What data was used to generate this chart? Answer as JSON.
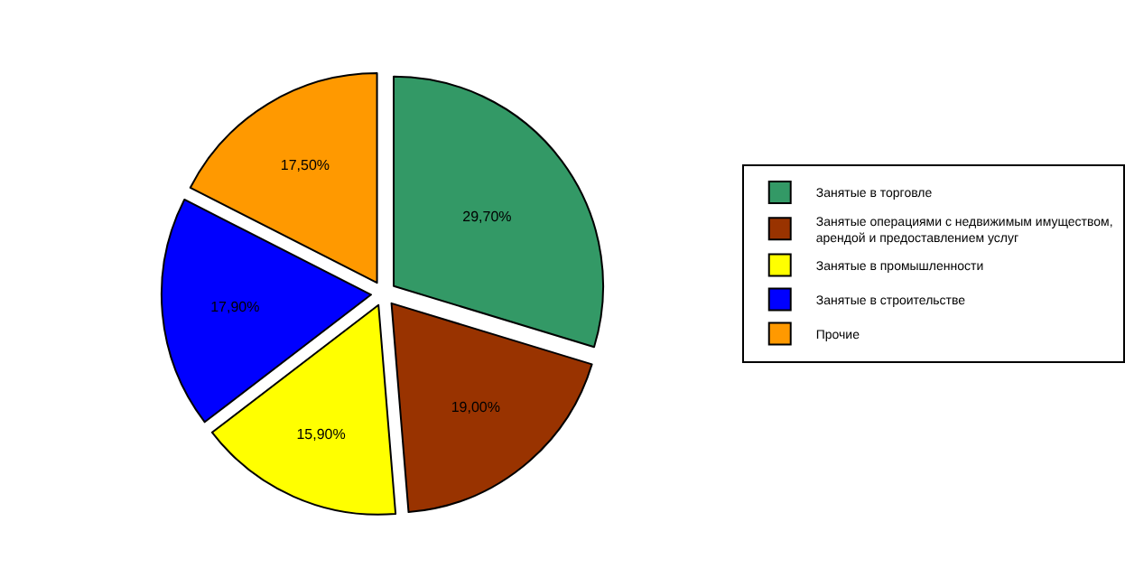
{
  "chart_data": {
    "type": "pie",
    "categories": [
      "Занятые в торговле",
      "Занятые операциями с недвижимым имуществом, арендой и предоставлением услуг",
      "Занятые в промышленности",
      "Занятые в строительстве",
      "Прочие"
    ],
    "values": [
      29.7,
      19.0,
      15.9,
      17.9,
      17.5
    ],
    "value_labels": [
      "29,70%",
      "19,00%",
      "15,90%",
      "17,90%",
      "17,50%"
    ],
    "colors": [
      "#339966",
      "#993300",
      "#ffff00",
      "#0000ff",
      "#ff9900"
    ],
    "legend": "right"
  }
}
